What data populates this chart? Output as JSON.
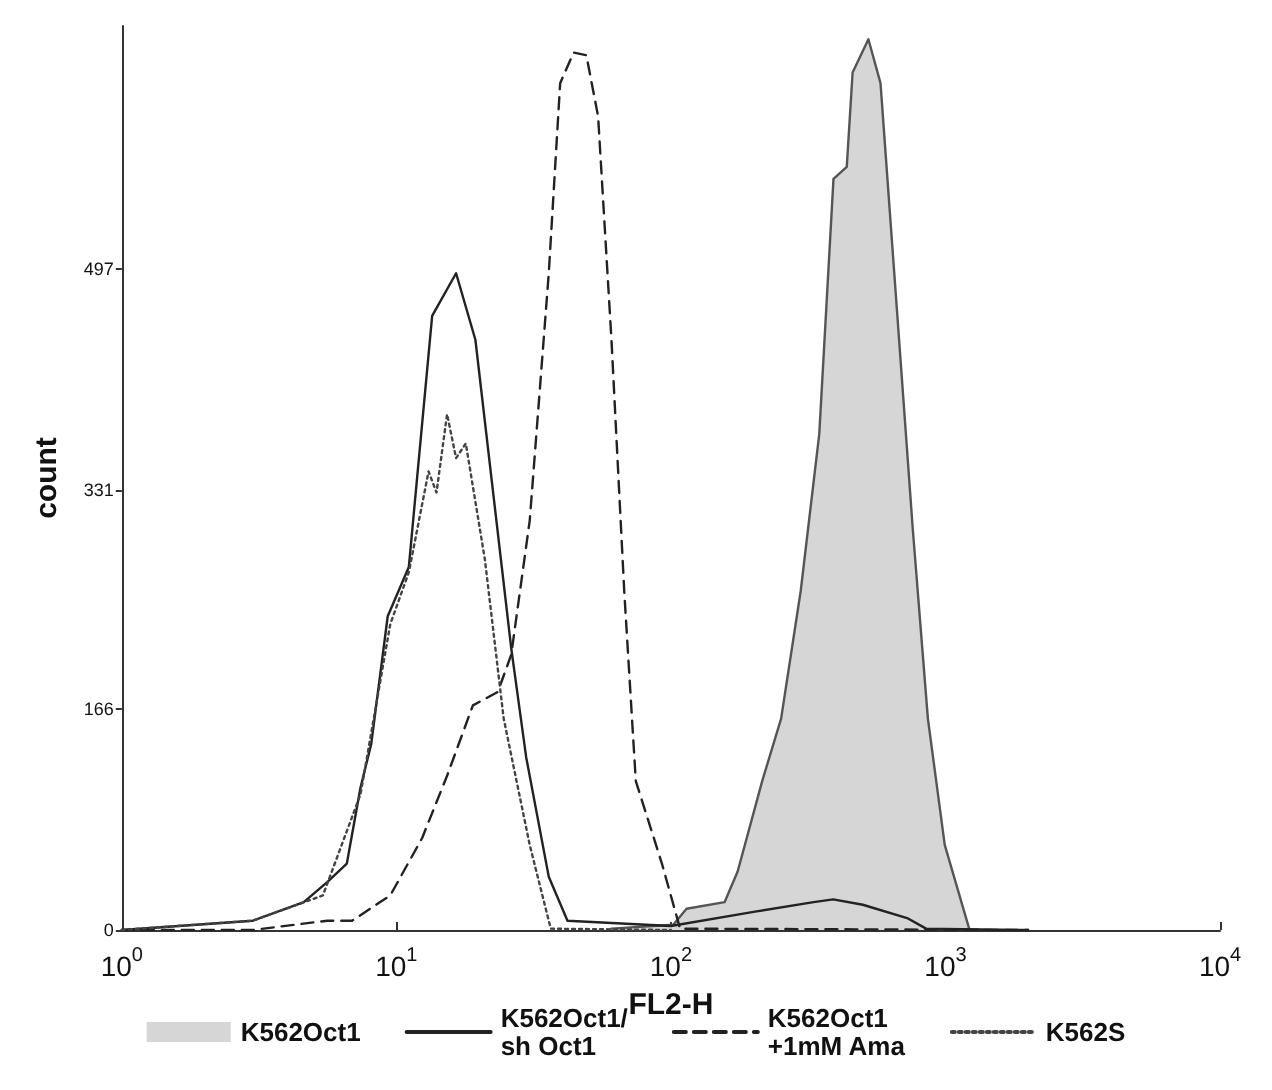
{
  "chart_data": {
    "type": "line",
    "xlabel": "FL2-H",
    "ylabel": "count",
    "log": "x",
    "grid": false,
    "legend": "bottom",
    "marker": "none",
    "xlim": [
      1,
      10000
    ],
    "ylim": [
      0,
      680
    ],
    "xticks": [
      {
        "value": 1,
        "label": "10$^{0}$"
      },
      {
        "value": 10,
        "label": "10$^{1}$"
      },
      {
        "value": 100,
        "label": "10$^{2}$"
      },
      {
        "value": 1000,
        "label": "10$^{3}$"
      },
      {
        "value": 10000,
        "label": "10$^{4}$"
      }
    ],
    "yticks": [
      0,
      166,
      331,
      497
    ],
    "series": [
      {
        "name": "K562Oct1",
        "type": "area",
        "color": "#d6d6d6",
        "line_style": "solid",
        "x": [
          60.7,
          102,
          114,
          157,
          175,
          215,
          252,
          297,
          347,
          391,
          437,
          459,
          524,
          580,
          651,
          760,
          863,
          994,
          1220
        ],
        "values": [
          1,
          4,
          16,
          21,
          44,
          112,
          159,
          255,
          373,
          565,
          574,
          645,
          670,
          637,
          494,
          302,
          159,
          64,
          1
        ]
      },
      {
        "name": "K562Oct1/\nsh Oct1",
        "color": "#222222",
        "line_style": "solid",
        "x": [
          1,
          3.0,
          4.6,
          5.6,
          6.6,
          7.4,
          8.1,
          9.3,
          11.1,
          13.5,
          16.5,
          19.4,
          26.2,
          29.7,
          35.9,
          42,
          100,
          205,
          331,
          390,
          500,
          725,
          850,
          2000
        ],
        "values": [
          0,
          7,
          21,
          36,
          50,
          107,
          140,
          236,
          273,
          462,
          494,
          444,
          212,
          130,
          40,
          7,
          3,
          14,
          21,
          23,
          19,
          9,
          1,
          0
        ]
      },
      {
        "name": "K562Oct1\n+1mM Ama",
        "color": "#222222",
        "line_style": "dashed",
        "x": [
          1,
          3.0,
          5.6,
          6.9,
          9.5,
          12.4,
          15.3,
          19.0,
          23.4,
          26.2,
          30.6,
          35.9,
          39.5,
          44.2,
          49.2,
          54.3,
          60.7,
          67.6,
          74.5,
          92.7,
          108,
          2000
        ],
        "values": [
          0,
          0,
          7,
          7,
          26,
          69,
          116,
          169,
          179,
          207,
          308,
          494,
          637,
          660,
          658,
          612,
          445,
          255,
          112,
          50,
          1,
          0
        ]
      },
      {
        "name": "K562S",
        "color": "#444444",
        "line_style": "dotted",
        "x": [
          1,
          3.0,
          5.4,
          7.4,
          9.5,
          11.1,
          13.1,
          14.0,
          15.3,
          16.5,
          17.9,
          21.0,
          24.6,
          30.6,
          36.5,
          100
        ],
        "values": [
          0,
          7,
          26,
          102,
          230,
          269,
          345,
          329,
          388,
          355,
          366,
          279,
          159,
          64,
          1,
          0
        ]
      }
    ]
  }
}
